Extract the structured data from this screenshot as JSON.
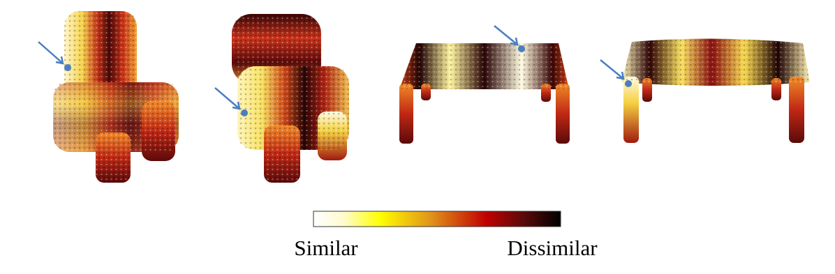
{
  "legend": {
    "low_label": "Similar",
    "high_label": "Dissimilar"
  }
}
